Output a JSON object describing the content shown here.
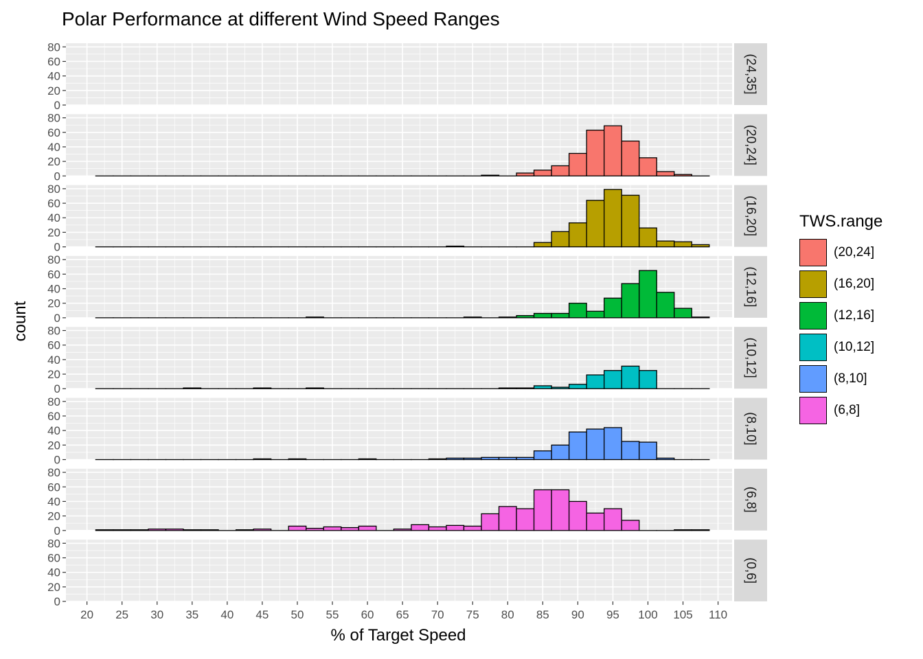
{
  "title": "Polar Performance at different Wind Speed Ranges",
  "chart_data": {
    "type": "histogram",
    "facet": "TWS.range",
    "x_axis": {
      "label": "% of Target Speed",
      "range": [
        17,
        112
      ],
      "ticks": [
        20,
        25,
        30,
        35,
        40,
        45,
        50,
        55,
        60,
        65,
        70,
        75,
        80,
        85,
        90,
        95,
        100,
        105,
        110
      ]
    },
    "y_axis": {
      "label": "count",
      "range": [
        0,
        85
      ],
      "ticks": [
        0,
        20,
        40,
        60,
        80
      ]
    },
    "bin_width": 2.5,
    "bin_starts": [
      21.25,
      23.75,
      26.25,
      28.75,
      31.25,
      33.75,
      36.25,
      38.75,
      41.25,
      43.75,
      46.25,
      48.75,
      51.25,
      53.75,
      56.25,
      58.75,
      61.25,
      63.75,
      66.25,
      68.75,
      71.25,
      73.75,
      76.25,
      78.75,
      81.25,
      83.75,
      86.25,
      88.75,
      91.25,
      93.75,
      96.25,
      98.75,
      101.25,
      103.75,
      106.25
    ],
    "grid": true,
    "legend": {
      "title": "TWS.range",
      "position": "right",
      "items": [
        {
          "label": "(20,24]",
          "color": "#F8766D"
        },
        {
          "label": "(16,20]",
          "color": "#B79F00"
        },
        {
          "label": "(12,16]",
          "color": "#00BA38"
        },
        {
          "label": "(10,12]",
          "color": "#00BFC4"
        },
        {
          "label": "(8,10]",
          "color": "#619CFF"
        },
        {
          "label": "(6,8]",
          "color": "#F564E3"
        }
      ]
    },
    "panels": [
      {
        "strip": "(24,35]",
        "color": "#F8766D",
        "counts": [
          0,
          0,
          0,
          0,
          0,
          0,
          0,
          0,
          0,
          0,
          0,
          0,
          0,
          0,
          0,
          0,
          0,
          0,
          0,
          0,
          0,
          0,
          0,
          0,
          0,
          0,
          0,
          0,
          0,
          0,
          0,
          0,
          0,
          0,
          0
        ],
        "empty": true
      },
      {
        "strip": "(20,24]",
        "color": "#F8766D",
        "counts": [
          0,
          0,
          0,
          0,
          0,
          0,
          0,
          0,
          0,
          0,
          0,
          0,
          0,
          0,
          0,
          0,
          0,
          0,
          0,
          0,
          0,
          0,
          1,
          0,
          4,
          8,
          14,
          31,
          63,
          69,
          48,
          25,
          6,
          2,
          0
        ]
      },
      {
        "strip": "(16,20]",
        "color": "#B79F00",
        "counts": [
          0,
          0,
          0,
          0,
          0,
          0,
          0,
          0,
          0,
          0,
          0,
          0,
          0,
          0,
          0,
          0,
          0,
          0,
          0,
          0,
          1,
          0,
          0,
          0,
          0,
          6,
          21,
          33,
          64,
          79,
          71,
          26,
          8,
          7,
          3
        ]
      },
      {
        "strip": "(12,16]",
        "color": "#00BA38",
        "counts": [
          0,
          0,
          0,
          0,
          0,
          0,
          0,
          0,
          0,
          0,
          0,
          0,
          1,
          0,
          0,
          0,
          0,
          0,
          0,
          0,
          0,
          1,
          0,
          1,
          3,
          6,
          6,
          20,
          9,
          27,
          47,
          65,
          35,
          13,
          1
        ]
      },
      {
        "strip": "(10,12]",
        "color": "#00BFC4",
        "counts": [
          0,
          0,
          0,
          0,
          0,
          1,
          0,
          0,
          0,
          1,
          0,
          0,
          1,
          0,
          0,
          0,
          0,
          0,
          0,
          0,
          0,
          0,
          0,
          1,
          1,
          4,
          2,
          6,
          19,
          25,
          31,
          25,
          0,
          0,
          0
        ]
      },
      {
        "strip": "(8,10]",
        "color": "#619CFF",
        "counts": [
          0,
          0,
          0,
          0,
          0,
          0,
          0,
          0,
          0,
          1,
          0,
          1,
          0,
          0,
          0,
          1,
          0,
          0,
          0,
          1,
          2,
          2,
          3,
          3,
          3,
          12,
          20,
          38,
          42,
          44,
          25,
          24,
          2,
          0,
          0
        ]
      },
      {
        "strip": "(6,8]",
        "color": "#F564E3",
        "counts": [
          1,
          1,
          1,
          2,
          2,
          1,
          1,
          0,
          1,
          2,
          0,
          6,
          3,
          5,
          4,
          6,
          0,
          2,
          8,
          5,
          7,
          6,
          23,
          33,
          30,
          56,
          56,
          40,
          24,
          30,
          14,
          0,
          0,
          1,
          1
        ]
      },
      {
        "strip": "(0,6]",
        "color": "#F564E3",
        "counts": [
          0,
          0,
          0,
          0,
          0,
          0,
          0,
          0,
          0,
          0,
          0,
          0,
          0,
          0,
          0,
          0,
          0,
          0,
          0,
          0,
          0,
          0,
          0,
          0,
          0,
          0,
          0,
          0,
          0,
          0,
          0,
          0,
          0,
          0,
          0
        ],
        "empty": true
      }
    ]
  }
}
